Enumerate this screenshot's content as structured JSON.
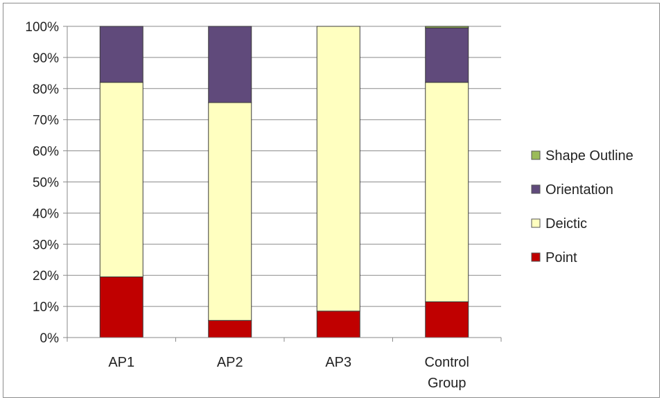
{
  "chart_data": {
    "type": "bar",
    "stacked": true,
    "percent_stacked": true,
    "categories": [
      "AP1",
      "AP2",
      "AP3",
      "Control\nGroup"
    ],
    "category_lines": [
      [
        "AP1"
      ],
      [
        "AP2"
      ],
      [
        "AP3"
      ],
      [
        "Control",
        "Group"
      ]
    ],
    "series": [
      {
        "name": "Point",
        "color": "#c00000",
        "values": [
          19.5,
          5.5,
          8.5,
          11.5
        ]
      },
      {
        "name": "Deictic",
        "color": "#ffffc0",
        "values": [
          62.5,
          70.0,
          91.5,
          70.5
        ]
      },
      {
        "name": "Orientation",
        "color": "#604a7b",
        "values": [
          18.0,
          24.5,
          0.0,
          17.5
        ]
      },
      {
        "name": "Shape Outline",
        "color": "#9bbb59",
        "values": [
          0.0,
          0.0,
          0.0,
          0.5
        ]
      }
    ],
    "legend_order": [
      "Shape Outline",
      "Orientation",
      "Deictic",
      "Point"
    ],
    "y_ticks": [
      "0%",
      "10%",
      "20%",
      "30%",
      "40%",
      "50%",
      "60%",
      "70%",
      "80%",
      "90%",
      "100%"
    ],
    "ylim": [
      0,
      100
    ],
    "grid": true,
    "legend_position": "right",
    "title": "",
    "xlabel": "",
    "ylabel": ""
  }
}
